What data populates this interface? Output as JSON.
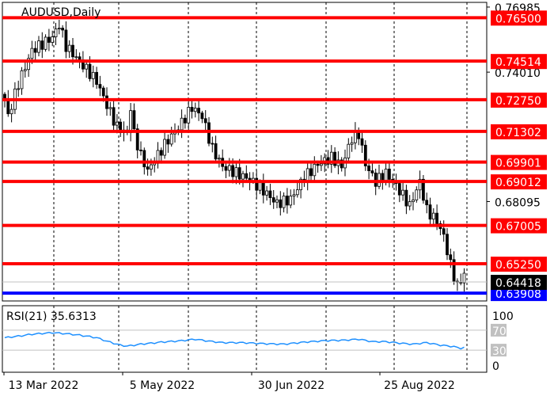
{
  "chart_data": {
    "type": "candlestick",
    "title": "AUDUSD,Daily",
    "price_axis": {
      "ylim": [
        0.6355,
        0.772
      ],
      "tick_labels": [
        "0.76985",
        "0.74010",
        "0.68095"
      ]
    },
    "x_tick_labels": [
      "13 Mar 2022",
      "5 May 2022",
      "30 Jun 2022",
      "25 Aug 2022"
    ],
    "grid": "vertical dashed",
    "price_path": [
      [
        0,
        0.728
      ],
      [
        1,
        0.72
      ],
      [
        4,
        0.735
      ],
      [
        8,
        0.75
      ],
      [
        14,
        0.756
      ],
      [
        16,
        0.762
      ],
      [
        18,
        0.752
      ],
      [
        22,
        0.745
      ],
      [
        27,
        0.736
      ],
      [
        30,
        0.725
      ],
      [
        33,
        0.715
      ],
      [
        36,
        0.712
      ],
      [
        37,
        0.724
      ],
      [
        38,
        0.712
      ],
      [
        40,
        0.702
      ],
      [
        42,
        0.695
      ],
      [
        47,
        0.707
      ],
      [
        52,
        0.717
      ],
      [
        55,
        0.724
      ],
      [
        58,
        0.72
      ],
      [
        61,
        0.705
      ],
      [
        64,
        0.697
      ],
      [
        68,
        0.694
      ],
      [
        72,
        0.691
      ],
      [
        76,
        0.686
      ],
      [
        80,
        0.68
      ],
      [
        84,
        0.682
      ],
      [
        88,
        0.692
      ],
      [
        92,
        0.698
      ],
      [
        96,
        0.701
      ],
      [
        99,
        0.697
      ],
      [
        102,
        0.71
      ],
      [
        104,
        0.712
      ],
      [
        106,
        0.698
      ],
      [
        109,
        0.69
      ],
      [
        112,
        0.694
      ],
      [
        116,
        0.686
      ],
      [
        119,
        0.679
      ],
      [
        122,
        0.69
      ],
      [
        124,
        0.677
      ],
      [
        127,
        0.672
      ],
      [
        129,
        0.665
      ],
      [
        131,
        0.652
      ],
      [
        133,
        0.642
      ],
      [
        135,
        0.648
      ],
      [
        136,
        0.643
      ]
    ],
    "levels": [
      {
        "value": "0.76500",
        "price": 0.765,
        "color": "#ff0000"
      },
      {
        "value": "0.74514",
        "price": 0.74514,
        "color": "#ff0000"
      },
      {
        "value": "0.72750",
        "price": 0.7275,
        "color": "#ff0000"
      },
      {
        "value": "0.71302",
        "price": 0.71302,
        "color": "#ff0000"
      },
      {
        "value": "0.69901",
        "price": 0.69901,
        "color": "#ff0000"
      },
      {
        "value": "0.69012",
        "price": 0.69012,
        "color": "#ff0000"
      },
      {
        "value": "0.67005",
        "price": 0.67005,
        "color": "#ff0000"
      },
      {
        "value": "0.65250",
        "price": 0.6525,
        "color": "#ff0000"
      },
      {
        "value": "0.63908",
        "price": 0.63908,
        "color": "#0000ff"
      }
    ],
    "current_price": {
      "value": "0.64418",
      "price": 0.64418,
      "color": "#000000"
    },
    "rsi": {
      "label": "RSI(21) 35.6313",
      "ylim": [
        0,
        100
      ],
      "tick_labels": [
        "100",
        "70",
        "30",
        "0"
      ],
      "levels": [
        70,
        30
      ],
      "path": [
        [
          0,
          55
        ],
        [
          4,
          58
        ],
        [
          8,
          62
        ],
        [
          14,
          65
        ],
        [
          18,
          63
        ],
        [
          22,
          60
        ],
        [
          27,
          55
        ],
        [
          30,
          48
        ],
        [
          34,
          40
        ],
        [
          36,
          38
        ],
        [
          40,
          42
        ],
        [
          46,
          46
        ],
        [
          52,
          49
        ],
        [
          56,
          52
        ],
        [
          60,
          48
        ],
        [
          64,
          45
        ],
        [
          70,
          45
        ],
        [
          76,
          43
        ],
        [
          82,
          42
        ],
        [
          88,
          46
        ],
        [
          94,
          49
        ],
        [
          100,
          50
        ],
        [
          104,
          52
        ],
        [
          108,
          47
        ],
        [
          112,
          47
        ],
        [
          116,
          44
        ],
        [
          120,
          42
        ],
        [
          124,
          45
        ],
        [
          128,
          40
        ],
        [
          132,
          37
        ],
        [
          134,
          34
        ],
        [
          136,
          36
        ]
      ]
    }
  }
}
